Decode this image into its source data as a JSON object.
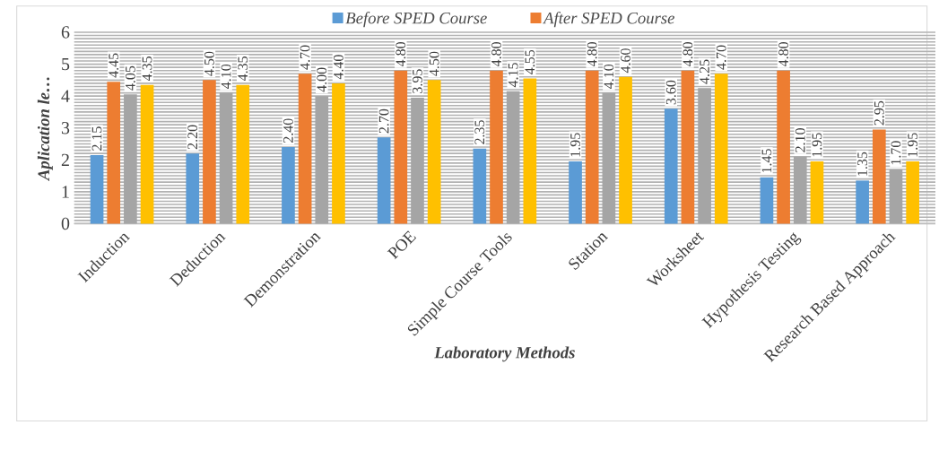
{
  "chart_data": {
    "type": "bar",
    "xlabel": "Laboratory Methods",
    "ylabel": "Aplication le…",
    "categories": [
      "Induction",
      "Deduction",
      "Demonstration",
      "POE",
      "Simple Course Tools",
      "Station",
      "Worksheet",
      "Hypothesis Testing",
      "Research Based Approach"
    ],
    "series": [
      {
        "name": "Before SPED Course",
        "color": "#5b9bd5",
        "values": [
          2.15,
          2.2,
          2.4,
          2.7,
          2.35,
          1.95,
          3.6,
          1.45,
          1.35
        ],
        "value_labels": [
          "2.15",
          "2.20",
          "2.40",
          "2.70",
          "2.35",
          "1.95",
          "3.60",
          "1.45",
          "1.35"
        ]
      },
      {
        "name": "After SPED Course",
        "color": "#ed7d31",
        "values": [
          4.45,
          4.5,
          4.7,
          4.8,
          4.8,
          4.8,
          4.8,
          4.8,
          2.95
        ],
        "value_labels": [
          "4.45",
          "4.50",
          "4.70",
          "4.80",
          "4.80",
          "4.80",
          "4.80",
          "4.80",
          "2.95"
        ]
      },
      {
        "color": "#a5a5a5",
        "values": [
          4.05,
          4.1,
          4.0,
          3.95,
          4.15,
          4.1,
          4.25,
          2.1,
          1.7
        ],
        "value_labels": [
          "4.05",
          "4.10",
          "4.00",
          "3.95",
          "4.15",
          "4.10",
          "4.25",
          "2.10",
          "1.70"
        ]
      },
      {
        "color": "#ffc000",
        "values": [
          4.35,
          4.35,
          4.4,
          4.5,
          4.55,
          4.6,
          4.7,
          1.95,
          1.95
        ],
        "value_labels": [
          "4.35",
          "4.35",
          "4.40",
          "4.50",
          "4.55",
          "4.60",
          "4.70",
          "1.95",
          "1.95"
        ]
      }
    ],
    "ylim": [
      0,
      6
    ],
    "yticks": [
      0,
      1,
      2,
      3,
      4,
      5,
      6
    ],
    "grid": "y",
    "legend": "top"
  }
}
